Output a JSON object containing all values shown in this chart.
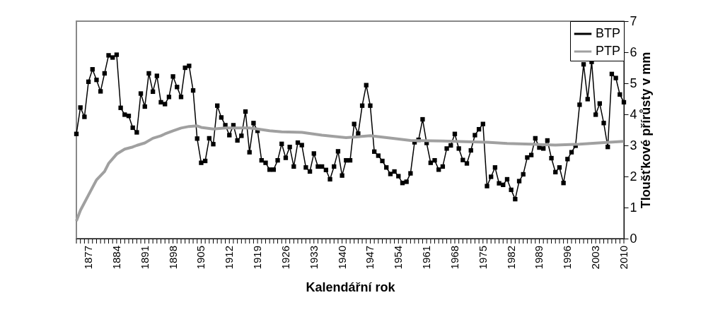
{
  "chart_data": {
    "type": "line",
    "xlabel": "Kalendářní rok",
    "ylabel": "Tloušťkové přírůsty v mm",
    "xlim": [
      1874,
      2010
    ],
    "ylim": [
      0,
      7
    ],
    "yticks": [
      0,
      1,
      2,
      3,
      4,
      5,
      6,
      7
    ],
    "xticks": [
      {
        "value": 1874,
        "label": null
      },
      {
        "value": 1875,
        "label": null
      },
      {
        "value": 1876,
        "label": null
      },
      1877,
      {
        "value": 1878,
        "label": null
      },
      {
        "value": 1879,
        "label": null
      },
      {
        "value": 1880,
        "label": null
      },
      {
        "value": 1881,
        "label": null
      },
      {
        "value": 1882,
        "label": null
      },
      {
        "value": 1883,
        "label": null
      },
      1884,
      {
        "value": 1885,
        "label": null
      },
      {
        "value": 1886,
        "label": null
      },
      {
        "value": 1887,
        "label": null
      },
      {
        "value": 1888,
        "label": null
      },
      {
        "value": 1889,
        "label": null
      },
      {
        "value": 1890,
        "label": null
      },
      1891,
      {
        "value": 1892,
        "label": null
      },
      {
        "value": 1893,
        "label": null
      },
      {
        "value": 1894,
        "label": null
      },
      {
        "value": 1895,
        "label": null
      },
      {
        "value": 1896,
        "label": null
      },
      {
        "value": 1897,
        "label": null
      },
      1898,
      {
        "value": 1899,
        "label": null
      },
      {
        "value": 1900,
        "label": null
      },
      {
        "value": 1901,
        "label": null
      },
      {
        "value": 1902,
        "label": null
      },
      {
        "value": 1903,
        "label": null
      },
      {
        "value": 1904,
        "label": null
      },
      1905,
      {
        "value": 1906,
        "label": null
      },
      {
        "value": 1907,
        "label": null
      },
      {
        "value": 1908,
        "label": null
      },
      {
        "value": 1909,
        "label": null
      },
      {
        "value": 1910,
        "label": null
      },
      {
        "value": 1911,
        "label": null
      },
      1912,
      {
        "value": 1913,
        "label": null
      },
      {
        "value": 1914,
        "label": null
      },
      {
        "value": 1915,
        "label": null
      },
      {
        "value": 1916,
        "label": null
      },
      {
        "value": 1917,
        "label": null
      },
      {
        "value": 1918,
        "label": null
      },
      1919,
      {
        "value": 1920,
        "label": null
      },
      {
        "value": 1921,
        "label": null
      },
      {
        "value": 1922,
        "label": null
      },
      {
        "value": 1923,
        "label": null
      },
      {
        "value": 1924,
        "label": null
      },
      {
        "value": 1925,
        "label": null
      },
      1926,
      {
        "value": 1927,
        "label": null
      },
      {
        "value": 1928,
        "label": null
      },
      {
        "value": 1929,
        "label": null
      },
      {
        "value": 1930,
        "label": null
      },
      {
        "value": 1931,
        "label": null
      },
      {
        "value": 1932,
        "label": null
      },
      1933,
      {
        "value": 1934,
        "label": null
      },
      {
        "value": 1935,
        "label": null
      },
      {
        "value": 1936,
        "label": null
      },
      {
        "value": 1937,
        "label": null
      },
      {
        "value": 1938,
        "label": null
      },
      {
        "value": 1939,
        "label": null
      },
      1940,
      {
        "value": 1941,
        "label": null
      },
      {
        "value": 1942,
        "label": null
      },
      {
        "value": 1943,
        "label": null
      },
      {
        "value": 1944,
        "label": null
      },
      {
        "value": 1945,
        "label": null
      },
      {
        "value": 1946,
        "label": null
      },
      1947,
      {
        "value": 1948,
        "label": null
      },
      {
        "value": 1949,
        "label": null
      },
      {
        "value": 1950,
        "label": null
      },
      {
        "value": 1951,
        "label": null
      },
      {
        "value": 1952,
        "label": null
      },
      {
        "value": 1953,
        "label": null
      },
      1954,
      {
        "value": 1955,
        "label": null
      },
      {
        "value": 1956,
        "label": null
      },
      {
        "value": 1957,
        "label": null
      },
      {
        "value": 1958,
        "label": null
      },
      {
        "value": 1959,
        "label": null
      },
      {
        "value": 1960,
        "label": null
      },
      1961,
      {
        "value": 1962,
        "label": null
      },
      {
        "value": 1963,
        "label": null
      },
      {
        "value": 1964,
        "label": null
      },
      {
        "value": 1965,
        "label": null
      },
      {
        "value": 1966,
        "label": null
      },
      {
        "value": 1967,
        "label": null
      },
      1968,
      {
        "value": 1969,
        "label": null
      },
      {
        "value": 1970,
        "label": null
      },
      {
        "value": 1971,
        "label": null
      },
      {
        "value": 1972,
        "label": null
      },
      {
        "value": 1973,
        "label": null
      },
      {
        "value": 1974,
        "label": null
      },
      1975,
      {
        "value": 1976,
        "label": null
      },
      {
        "value": 1977,
        "label": null
      },
      {
        "value": 1978,
        "label": null
      },
      {
        "value": 1979,
        "label": null
      },
      {
        "value": 1980,
        "label": null
      },
      {
        "value": 1981,
        "label": null
      },
      1982,
      {
        "value": 1983,
        "label": null
      },
      {
        "value": 1984,
        "label": null
      },
      {
        "value": 1985,
        "label": null
      },
      {
        "value": 1986,
        "label": null
      },
      {
        "value": 1987,
        "label": null
      },
      {
        "value": 1988,
        "label": null
      },
      1989,
      {
        "value": 1990,
        "label": null
      },
      {
        "value": 1991,
        "label": null
      },
      {
        "value": 1992,
        "label": null
      },
      {
        "value": 1993,
        "label": null
      },
      {
        "value": 1994,
        "label": null
      },
      {
        "value": 1995,
        "label": null
      },
      1996,
      {
        "value": 1997,
        "label": null
      },
      {
        "value": 1998,
        "label": null
      },
      {
        "value": 1999,
        "label": null
      },
      {
        "value": 2000,
        "label": null
      },
      {
        "value": 2001,
        "label": null
      },
      {
        "value": 2002,
        "label": null
      },
      2003,
      {
        "value": 2004,
        "label": null
      },
      {
        "value": 2005,
        "label": null
      },
      {
        "value": 2006,
        "label": null
      },
      {
        "value": 2007,
        "label": null
      },
      {
        "value": 2008,
        "label": null
      },
      {
        "value": 2009,
        "label": null
      },
      2010
    ],
    "x": [
      1874,
      1875,
      1876,
      1877,
      1878,
      1879,
      1880,
      1881,
      1882,
      1883,
      1884,
      1885,
      1886,
      1887,
      1888,
      1889,
      1890,
      1891,
      1892,
      1893,
      1894,
      1895,
      1896,
      1897,
      1898,
      1899,
      1900,
      1901,
      1902,
      1903,
      1904,
      1905,
      1906,
      1907,
      1908,
      1909,
      1910,
      1911,
      1912,
      1913,
      1914,
      1915,
      1916,
      1917,
      1918,
      1919,
      1920,
      1921,
      1922,
      1923,
      1924,
      1925,
      1926,
      1927,
      1928,
      1929,
      1930,
      1931,
      1932,
      1933,
      1934,
      1935,
      1936,
      1937,
      1938,
      1939,
      1940,
      1941,
      1942,
      1943,
      1944,
      1945,
      1946,
      1947,
      1948,
      1949,
      1950,
      1951,
      1952,
      1953,
      1954,
      1955,
      1956,
      1957,
      1958,
      1959,
      1960,
      1961,
      1962,
      1963,
      1964,
      1965,
      1966,
      1967,
      1968,
      1969,
      1970,
      1971,
      1972,
      1973,
      1974,
      1975,
      1976,
      1977,
      1978,
      1979,
      1980,
      1981,
      1982,
      1983,
      1984,
      1985,
      1986,
      1987,
      1988,
      1989,
      1990,
      1991,
      1992,
      1993,
      1994,
      1995,
      1996,
      1997,
      1998,
      1999,
      2000,
      2001,
      2002,
      2003,
      2004,
      2005,
      2006,
      2007,
      2008,
      2009,
      2010
    ],
    "series": [
      {
        "name": "BTP",
        "color": "#000000",
        "marker": "square",
        "values": [
          3.37,
          4.22,
          3.92,
          5.05,
          5.45,
          5.11,
          4.74,
          5.32,
          5.9,
          5.83,
          5.92,
          4.21,
          3.99,
          3.95,
          3.57,
          3.42,
          4.67,
          4.25,
          5.32,
          4.73,
          5.24,
          4.39,
          4.33,
          4.56,
          5.22,
          4.88,
          4.56,
          5.5,
          5.56,
          4.77,
          3.22,
          2.44,
          2.5,
          3.23,
          3.04,
          4.28,
          3.9,
          3.65,
          3.33,
          3.65,
          3.16,
          3.31,
          4.09,
          2.78,
          3.72,
          3.47,
          2.52,
          2.44,
          2.22,
          2.22,
          2.52,
          3.05,
          2.6,
          2.95,
          2.32,
          3.09,
          3.01,
          2.29,
          2.16,
          2.74,
          2.32,
          2.32,
          2.21,
          1.91,
          2.32,
          2.81,
          2.03,
          2.52,
          2.52,
          3.69,
          3.38,
          4.28,
          4.94,
          4.28,
          2.8,
          2.67,
          2.5,
          2.29,
          2.08,
          2.16,
          2.01,
          1.79,
          1.83,
          2.1,
          3.1,
          3.18,
          3.84,
          3.08,
          2.44,
          2.52,
          2.22,
          2.32,
          2.9,
          3.0,
          3.37,
          2.9,
          2.53,
          2.42,
          2.84,
          3.33,
          3.52,
          3.69,
          1.69,
          1.99,
          2.29,
          1.78,
          1.73,
          1.91,
          1.57,
          1.27,
          1.85,
          2.07,
          2.61,
          2.69,
          3.23,
          2.93,
          2.9,
          3.16,
          2.59,
          2.14,
          2.29,
          1.79,
          2.56,
          2.78,
          2.99,
          4.31,
          5.61,
          4.49,
          5.69,
          3.99,
          4.35,
          3.72,
          2.95,
          5.3,
          5.17,
          4.64,
          4.39
        ]
      },
      {
        "name": "PTP",
        "color": "#a0a0a0",
        "marker": "none",
        "x": [
          1874,
          1875,
          1877,
          1879,
          1881,
          1882,
          1884,
          1886,
          1888,
          1889,
          1891,
          1893,
          1895,
          1896,
          1898,
          1900,
          1902,
          1904,
          1905,
          1908,
          1911,
          1914,
          1917,
          1919,
          1922,
          1925,
          1930,
          1935,
          1941,
          1947,
          1953,
          1957,
          1965,
          1971,
          1976,
          1981,
          1987,
          1993,
          1999,
          2005,
          2010
        ],
        "values": [
          0.57,
          0.91,
          1.4,
          1.89,
          2.16,
          2.42,
          2.72,
          2.88,
          2.95,
          3.0,
          3.08,
          3.23,
          3.31,
          3.37,
          3.47,
          3.56,
          3.61,
          3.63,
          3.58,
          3.53,
          3.56,
          3.56,
          3.56,
          3.53,
          3.47,
          3.44,
          3.42,
          3.33,
          3.25,
          3.31,
          3.22,
          3.16,
          3.14,
          3.12,
          3.1,
          3.06,
          3.04,
          3.01,
          3.04,
          3.09,
          3.13
        ]
      }
    ],
    "legend": "top right",
    "grid": false
  }
}
